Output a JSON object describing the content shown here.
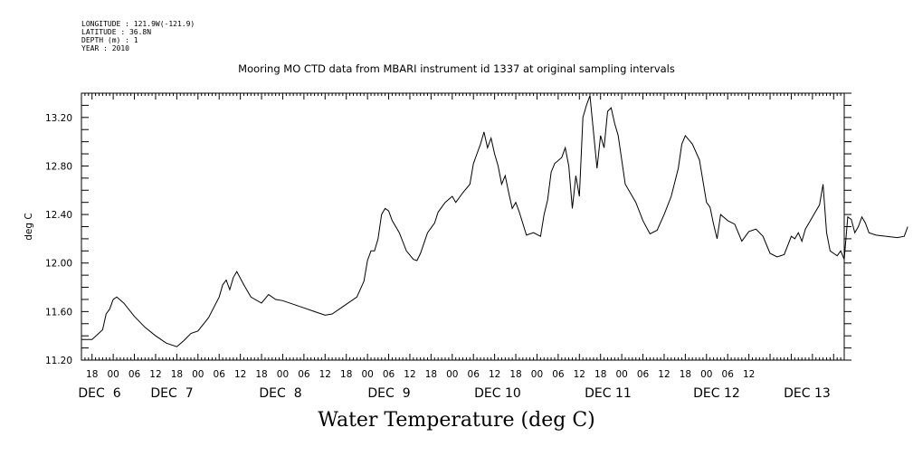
{
  "metadata": {
    "longitude": "LONGITUDE : 121.9W(-121.9)",
    "latitude": "LATITUDE : 36.8N",
    "depth": "DEPTH (m) : 1",
    "year": "YEAR : 2010"
  },
  "chart_data": {
    "type": "line",
    "title": "Mooring MO CTD data from MBARI instrument id 1337 at original sampling intervals",
    "xlabel": "Water Temperature (deg C)",
    "ylabel": "deg C",
    "ylim": [
      11.2,
      13.4
    ],
    "yticks": [
      "11.20",
      "11.60",
      "12.00",
      "12.40",
      "12.80",
      "13.20"
    ],
    "xlim_hours": [
      111,
      327
    ],
    "hour_ticks": [
      "18",
      "00",
      "06",
      "12",
      "18",
      "00",
      "06",
      "12",
      "18",
      "00",
      "06",
      "12",
      "18",
      "00",
      "06",
      "12",
      "18",
      "00",
      "06",
      "12",
      "18",
      "00",
      "06",
      "12",
      "18",
      "00",
      "06",
      "12",
      "18",
      "00",
      "06",
      "12"
    ],
    "day_labels": [
      "DEC  6",
      "DEC  7",
      "DEC  8",
      "DEC  9",
      "DEC 10",
      "DEC 11",
      "DEC 12",
      "DEC 13"
    ],
    "series": [
      {
        "values": [
          {
            "x": "2010-12-05 15:00",
            "y": 11.37
          },
          {
            "x": "2010-12-05 18:00",
            "y": 11.37
          },
          {
            "x": "2010-12-05 21:00",
            "y": 11.45
          },
          {
            "x": "2010-12-05 22:00",
            "y": 11.58
          },
          {
            "x": "2010-12-05 23:00",
            "y": 11.62
          },
          {
            "x": "2010-12-06 00:00",
            "y": 11.7
          },
          {
            "x": "2010-12-06 01:00",
            "y": 11.72
          },
          {
            "x": "2010-12-06 03:00",
            "y": 11.67
          },
          {
            "x": "2010-12-06 06:00",
            "y": 11.56
          },
          {
            "x": "2010-12-06 09:00",
            "y": 11.47
          },
          {
            "x": "2010-12-06 12:00",
            "y": 11.4
          },
          {
            "x": "2010-12-06 15:00",
            "y": 11.34
          },
          {
            "x": "2010-12-06 18:00",
            "y": 11.31
          },
          {
            "x": "2010-12-06 20:00",
            "y": 11.36
          },
          {
            "x": "2010-12-06 22:00",
            "y": 11.42
          },
          {
            "x": "2010-12-07 00:00",
            "y": 11.44
          },
          {
            "x": "2010-12-07 03:00",
            "y": 11.55
          },
          {
            "x": "2010-12-07 06:00",
            "y": 11.72
          },
          {
            "x": "2010-12-07 07:00",
            "y": 11.82
          },
          {
            "x": "2010-12-07 08:00",
            "y": 11.86
          },
          {
            "x": "2010-12-07 09:00",
            "y": 11.78
          },
          {
            "x": "2010-12-07 10:00",
            "y": 11.88
          },
          {
            "x": "2010-12-07 11:00",
            "y": 11.93
          },
          {
            "x": "2010-12-07 13:00",
            "y": 11.82
          },
          {
            "x": "2010-12-07 15:00",
            "y": 11.72
          },
          {
            "x": "2010-12-07 18:00",
            "y": 11.67
          },
          {
            "x": "2010-12-07 20:00",
            "y": 11.74
          },
          {
            "x": "2010-12-07 22:00",
            "y": 11.7
          },
          {
            "x": "2010-12-08 00:00",
            "y": 11.69
          },
          {
            "x": "2010-12-08 03:00",
            "y": 11.66
          },
          {
            "x": "2010-12-08 06:00",
            "y": 11.63
          },
          {
            "x": "2010-12-08 09:00",
            "y": 11.6
          },
          {
            "x": "2010-12-08 12:00",
            "y": 11.57
          },
          {
            "x": "2010-12-08 14:00",
            "y": 11.58
          },
          {
            "x": "2010-12-08 16:00",
            "y": 11.62
          },
          {
            "x": "2010-12-08 18:00",
            "y": 11.66
          },
          {
            "x": "2010-12-08 21:00",
            "y": 11.72
          },
          {
            "x": "2010-12-08 23:00",
            "y": 11.85
          },
          {
            "x": "2010-12-09 00:00",
            "y": 12.02
          },
          {
            "x": "2010-12-09 01:00",
            "y": 12.1
          },
          {
            "x": "2010-12-09 02:00",
            "y": 12.1
          },
          {
            "x": "2010-12-09 03:00",
            "y": 12.2
          },
          {
            "x": "2010-12-09 04:00",
            "y": 12.4
          },
          {
            "x": "2010-12-09 05:00",
            "y": 12.45
          },
          {
            "x": "2010-12-09 06:00",
            "y": 12.43
          },
          {
            "x": "2010-12-09 07:00",
            "y": 12.35
          },
          {
            "x": "2010-12-09 09:00",
            "y": 12.25
          },
          {
            "x": "2010-12-09 11:00",
            "y": 12.1
          },
          {
            "x": "2010-12-09 13:00",
            "y": 12.03
          },
          {
            "x": "2010-12-09 14:00",
            "y": 12.02
          },
          {
            "x": "2010-12-09 15:00",
            "y": 12.08
          },
          {
            "x": "2010-12-09 17:00",
            "y": 12.25
          },
          {
            "x": "2010-12-09 19:00",
            "y": 12.33
          },
          {
            "x": "2010-12-09 20:00",
            "y": 12.42
          },
          {
            "x": "2010-12-09 22:00",
            "y": 12.5
          },
          {
            "x": "2010-12-10 00:00",
            "y": 12.55
          },
          {
            "x": "2010-12-10 01:00",
            "y": 12.5
          },
          {
            "x": "2010-12-10 03:00",
            "y": 12.58
          },
          {
            "x": "2010-12-10 05:00",
            "y": 12.65
          },
          {
            "x": "2010-12-10 06:00",
            "y": 12.82
          },
          {
            "x": "2010-12-10 07:00",
            "y": 12.9
          },
          {
            "x": "2010-12-10 08:00",
            "y": 12.98
          },
          {
            "x": "2010-12-10 09:00",
            "y": 13.08
          },
          {
            "x": "2010-12-10 10:00",
            "y": 12.95
          },
          {
            "x": "2010-12-10 11:00",
            "y": 13.03
          },
          {
            "x": "2010-12-10 12:00",
            "y": 12.9
          },
          {
            "x": "2010-12-10 13:00",
            "y": 12.8
          },
          {
            "x": "2010-12-10 14:00",
            "y": 12.65
          },
          {
            "x": "2010-12-10 15:00",
            "y": 12.72
          },
          {
            "x": "2010-12-10 16:00",
            "y": 12.58
          },
          {
            "x": "2010-12-10 17:00",
            "y": 12.45
          },
          {
            "x": "2010-12-10 18:00",
            "y": 12.5
          },
          {
            "x": "2010-12-10 19:00",
            "y": 12.42
          },
          {
            "x": "2010-12-10 21:00",
            "y": 12.23
          },
          {
            "x": "2010-12-10 23:00",
            "y": 12.25
          },
          {
            "x": "2010-12-11 01:00",
            "y": 12.22
          },
          {
            "x": "2010-12-11 02:00",
            "y": 12.4
          },
          {
            "x": "2010-12-11 03:00",
            "y": 12.52
          },
          {
            "x": "2010-12-11 04:00",
            "y": 12.75
          },
          {
            "x": "2010-12-11 05:00",
            "y": 12.82
          },
          {
            "x": "2010-12-11 07:00",
            "y": 12.87
          },
          {
            "x": "2010-12-11 08:00",
            "y": 12.95
          },
          {
            "x": "2010-12-11 09:00",
            "y": 12.8
          },
          {
            "x": "2010-12-11 10:00",
            "y": 12.45
          },
          {
            "x": "2010-12-11 11:00",
            "y": 12.72
          },
          {
            "x": "2010-12-11 12:00",
            "y": 12.55
          },
          {
            "x": "2010-12-11 13:00",
            "y": 13.2
          },
          {
            "x": "2010-12-11 14:00",
            "y": 13.3
          },
          {
            "x": "2010-12-11 15:00",
            "y": 13.38
          },
          {
            "x": "2010-12-11 16:00",
            "y": 13.08
          },
          {
            "x": "2010-12-11 17:00",
            "y": 12.78
          },
          {
            "x": "2010-12-11 18:00",
            "y": 13.05
          },
          {
            "x": "2010-12-11 19:00",
            "y": 12.95
          },
          {
            "x": "2010-12-11 20:00",
            "y": 13.25
          },
          {
            "x": "2010-12-11 21:00",
            "y": 13.28
          },
          {
            "x": "2010-12-11 22:00",
            "y": 13.15
          },
          {
            "x": "2010-12-11 23:00",
            "y": 13.05
          },
          {
            "x": "2010-12-12 00:00",
            "y": 12.85
          },
          {
            "x": "2010-12-12 01:00",
            "y": 12.65
          },
          {
            "x": "2010-12-12 02:00",
            "y": 12.6
          },
          {
            "x": "2010-12-12 03:00",
            "y": 12.55
          },
          {
            "x": "2010-12-12 04:00",
            "y": 12.5
          },
          {
            "x": "2010-12-12 06:00",
            "y": 12.35
          },
          {
            "x": "2010-12-12 08:00",
            "y": 12.24
          },
          {
            "x": "2010-12-12 10:00",
            "y": 12.27
          },
          {
            "x": "2010-12-12 12:00",
            "y": 12.4
          },
          {
            "x": "2010-12-12 14:00",
            "y": 12.55
          },
          {
            "x": "2010-12-12 16:00",
            "y": 12.78
          },
          {
            "x": "2010-12-12 17:00",
            "y": 12.98
          },
          {
            "x": "2010-12-12 18:00",
            "y": 13.05
          },
          {
            "x": "2010-12-12 20:00",
            "y": 12.98
          },
          {
            "x": "2010-12-12 22:00",
            "y": 12.85
          },
          {
            "x": "2010-12-13 00:00",
            "y": 12.5
          },
          {
            "x": "2010-12-13 01:00",
            "y": 12.46
          },
          {
            "x": "2010-12-13 02:00",
            "y": 12.32
          },
          {
            "x": "2010-12-13 03:00",
            "y": 12.2
          },
          {
            "x": "2010-12-13 04:00",
            "y": 12.4
          },
          {
            "x": "2010-12-13 06:00",
            "y": 12.35
          },
          {
            "x": "2010-12-13 08:00",
            "y": 12.32
          },
          {
            "x": "2010-12-13 10:00",
            "y": 12.18
          },
          {
            "x": "2010-12-13 12:00",
            "y": 12.26
          },
          {
            "x": "2010-12-13 14:00",
            "y": 12.28
          },
          {
            "x": "2010-12-13 16:00",
            "y": 12.22
          },
          {
            "x": "2010-12-13 18:00",
            "y": 12.08
          },
          {
            "x": "2010-12-13 20:00",
            "y": 12.05
          },
          {
            "x": "2010-12-13 22:00",
            "y": 12.07
          },
          {
            "x": "2010-12-14 00:00",
            "y": 12.22
          },
          {
            "x": "2010-12-14 01:00",
            "y": 12.2
          },
          {
            "x": "2010-12-14 02:00",
            "y": 12.25
          },
          {
            "x": "2010-12-14 03:00",
            "y": 12.18
          },
          {
            "x": "2010-12-14 04:00",
            "y": 12.28
          },
          {
            "x": "2010-12-14 06:00",
            "y": 12.38
          },
          {
            "x": "2010-12-14 08:00",
            "y": 12.48
          },
          {
            "x": "2010-12-14 09:00",
            "y": 12.65
          },
          {
            "x": "2010-12-14 10:00",
            "y": 12.25
          },
          {
            "x": "2010-12-14 11:00",
            "y": 12.1
          },
          {
            "x": "2010-12-14 12:00",
            "y": 12.08
          },
          {
            "x": "2010-12-14 13:00",
            "y": 12.06
          },
          {
            "x": "2010-12-14 14:00",
            "y": 12.1
          },
          {
            "x": "2010-12-14 15:00",
            "y": 12.03
          },
          {
            "x": "2010-12-14 16:00",
            "y": 12.38
          },
          {
            "x": "2010-12-14 17:00",
            "y": 12.36
          },
          {
            "x": "2010-12-14 18:00",
            "y": 12.25
          },
          {
            "x": "2010-12-14 19:00",
            "y": 12.3
          },
          {
            "x": "2010-12-14 20:00",
            "y": 12.38
          },
          {
            "x": "2010-12-14 21:00",
            "y": 12.33
          },
          {
            "x": "2010-12-14 22:00",
            "y": 12.25
          },
          {
            "x": "2010-12-15 00:00",
            "y": 12.23
          },
          {
            "x": "2010-12-15 03:00",
            "y": 12.22
          },
          {
            "x": "2010-12-15 06:00",
            "y": 12.21
          },
          {
            "x": "2010-12-15 08:00",
            "y": 12.22
          },
          {
            "x": "2010-12-15 09:00",
            "y": 12.3
          }
        ]
      }
    ]
  }
}
